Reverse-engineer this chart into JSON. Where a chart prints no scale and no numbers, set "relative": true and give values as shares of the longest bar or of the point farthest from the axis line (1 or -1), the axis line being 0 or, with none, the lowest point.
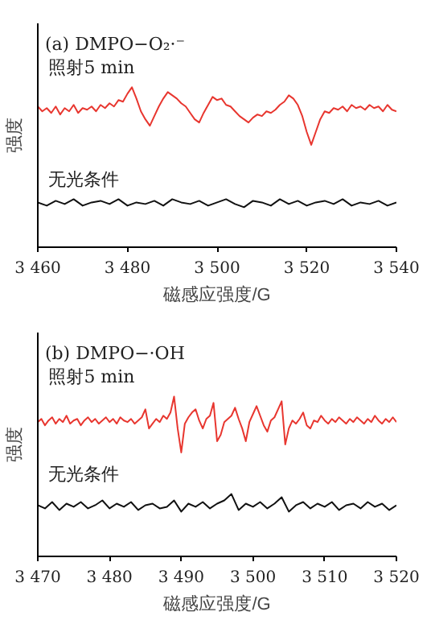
{
  "chart_data": [
    {
      "type": "line",
      "title": "(a) DMPO−O₂·⁻",
      "xlabel": "磁感应强度/G",
      "ylabel": "强度",
      "relative": true,
      "tick_labels": "x",
      "grid": false,
      "marker": "none",
      "line_style": "solid",
      "xlim": [
        3460,
        3540
      ],
      "xticks": [
        {
          "value": 3460,
          "label": "3 460"
        },
        {
          "value": 3480,
          "label": "3 480"
        },
        {
          "value": 3500,
          "label": "3 500"
        },
        {
          "value": 3520,
          "label": "3 520"
        },
        {
          "value": 3540,
          "label": "3 540"
        }
      ],
      "series": [
        {
          "name": "照射5 min",
          "color": "#e8362f",
          "x": [
            3460,
            3461,
            3462,
            3463,
            3464,
            3465,
            3466,
            3467,
            3468,
            3469,
            3470,
            3471,
            3472,
            3473,
            3474,
            3475,
            3476,
            3477,
            3478,
            3479,
            3480,
            3481,
            3482,
            3483,
            3484,
            3485,
            3486,
            3487,
            3488,
            3489,
            3490,
            3491,
            3492,
            3493,
            3494,
            3495,
            3496,
            3497,
            3498,
            3499,
            3500,
            3501,
            3502,
            3503,
            3504,
            3505,
            3506,
            3507,
            3508,
            3509,
            3510,
            3511,
            3512,
            3513,
            3514,
            3515,
            3516,
            3517,
            3518,
            3519,
            3520,
            3521,
            3522,
            3523,
            3524,
            3525,
            3526,
            3527,
            3528,
            3529,
            3530,
            3531,
            3532,
            3533,
            3534,
            3535,
            3536,
            3537,
            3538,
            3539,
            3540
          ],
          "values": [
            0.88,
            0.85,
            0.87,
            0.84,
            0.88,
            0.83,
            0.87,
            0.85,
            0.89,
            0.84,
            0.87,
            0.86,
            0.88,
            0.85,
            0.89,
            0.87,
            0.9,
            0.88,
            0.92,
            0.91,
            0.96,
            1.0,
            0.93,
            0.85,
            0.8,
            0.76,
            0.82,
            0.88,
            0.93,
            0.97,
            0.95,
            0.93,
            0.9,
            0.88,
            0.84,
            0.8,
            0.78,
            0.84,
            0.89,
            0.94,
            0.92,
            0.93,
            0.89,
            0.88,
            0.85,
            0.82,
            0.8,
            0.78,
            0.81,
            0.83,
            0.82,
            0.85,
            0.84,
            0.86,
            0.89,
            0.91,
            0.95,
            0.93,
            0.89,
            0.82,
            0.72,
            0.64,
            0.72,
            0.8,
            0.85,
            0.84,
            0.87,
            0.86,
            0.88,
            0.85,
            0.89,
            0.87,
            0.88,
            0.86,
            0.89,
            0.87,
            0.88,
            0.85,
            0.89,
            0.86,
            0.85
          ]
        },
        {
          "name": "无光条件",
          "color": "#111111",
          "x": [
            3460,
            3462,
            3464,
            3466,
            3468,
            3470,
            3472,
            3474,
            3476,
            3478,
            3480,
            3482,
            3484,
            3486,
            3488,
            3490,
            3492,
            3494,
            3496,
            3498,
            3500,
            3502,
            3504,
            3506,
            3508,
            3510,
            3512,
            3514,
            3516,
            3518,
            3520,
            3522,
            3524,
            3526,
            3528,
            3530,
            3532,
            3534,
            3536,
            3538,
            3540
          ],
          "values": [
            0.28,
            0.26,
            0.29,
            0.27,
            0.3,
            0.26,
            0.28,
            0.29,
            0.27,
            0.3,
            0.26,
            0.28,
            0.27,
            0.29,
            0.26,
            0.3,
            0.28,
            0.27,
            0.29,
            0.26,
            0.28,
            0.3,
            0.27,
            0.25,
            0.29,
            0.28,
            0.26,
            0.3,
            0.27,
            0.29,
            0.26,
            0.28,
            0.29,
            0.27,
            0.3,
            0.26,
            0.28,
            0.27,
            0.29,
            0.26,
            0.28
          ]
        }
      ]
    },
    {
      "type": "line",
      "title": "(b) DMPO−·OH",
      "xlabel": "磁感应强度/G",
      "ylabel": "强度",
      "relative": true,
      "tick_labels": "x",
      "grid": false,
      "marker": "none",
      "line_style": "solid",
      "xlim": [
        3470,
        3520
      ],
      "xticks": [
        {
          "value": 3470,
          "label": "3 470"
        },
        {
          "value": 3480,
          "label": "3 480"
        },
        {
          "value": 3490,
          "label": "3 490"
        },
        {
          "value": 3500,
          "label": "3 500"
        },
        {
          "value": 3510,
          "label": "3 510"
        },
        {
          "value": 3520,
          "label": "3 520"
        }
      ],
      "series": [
        {
          "name": "照射5 min",
          "color": "#e8362f",
          "x": [
            3470,
            3470.5,
            3471,
            3471.5,
            3472,
            3472.5,
            3473,
            3473.5,
            3474,
            3474.5,
            3475,
            3475.5,
            3476,
            3476.5,
            3477,
            3477.5,
            3478,
            3478.5,
            3479,
            3479.5,
            3480,
            3480.5,
            3481,
            3481.5,
            3482,
            3482.5,
            3483,
            3483.5,
            3484,
            3484.5,
            3485,
            3485.5,
            3486,
            3486.5,
            3487,
            3487.5,
            3488,
            3488.5,
            3489,
            3489.5,
            3490,
            3490.5,
            3491,
            3491.5,
            3492,
            3492.5,
            3493,
            3493.5,
            3494,
            3494.5,
            3495,
            3495.5,
            3496,
            3496.5,
            3497,
            3497.5,
            3498,
            3498.5,
            3499,
            3499.5,
            3500,
            3500.5,
            3501,
            3501.5,
            3502,
            3502.5,
            3503,
            3503.5,
            3504,
            3504.5,
            3505,
            3505.5,
            3506,
            3506.5,
            3507,
            3507.5,
            3508,
            3508.5,
            3509,
            3509.5,
            3510,
            3510.5,
            3511,
            3511.5,
            3512,
            3512.5,
            3513,
            3513.5,
            3514,
            3514.5,
            3515,
            3515.5,
            3516,
            3516.5,
            3517,
            3517.5,
            3518,
            3518.5,
            3519,
            3519.5,
            3520
          ],
          "values": [
            0.84,
            0.86,
            0.82,
            0.85,
            0.87,
            0.83,
            0.86,
            0.84,
            0.88,
            0.83,
            0.85,
            0.86,
            0.82,
            0.85,
            0.87,
            0.84,
            0.86,
            0.83,
            0.85,
            0.87,
            0.84,
            0.86,
            0.83,
            0.87,
            0.85,
            0.84,
            0.86,
            0.83,
            0.85,
            0.87,
            0.92,
            0.8,
            0.83,
            0.86,
            0.84,
            0.88,
            0.86,
            0.9,
            1.0,
            0.8,
            0.65,
            0.83,
            0.87,
            0.9,
            0.92,
            0.85,
            0.8,
            0.86,
            0.88,
            0.96,
            0.72,
            0.76,
            0.84,
            0.86,
            0.88,
            0.93,
            0.86,
            0.8,
            0.72,
            0.84,
            0.89,
            0.94,
            0.88,
            0.82,
            0.78,
            0.85,
            0.87,
            0.92,
            0.97,
            0.7,
            0.8,
            0.85,
            0.83,
            0.86,
            0.9,
            0.82,
            0.8,
            0.85,
            0.84,
            0.88,
            0.85,
            0.83,
            0.86,
            0.84,
            0.87,
            0.85,
            0.83,
            0.86,
            0.84,
            0.87,
            0.85,
            0.83,
            0.86,
            0.84,
            0.88,
            0.85,
            0.83,
            0.86,
            0.84,
            0.87,
            0.84
          ]
        },
        {
          "name": "无光条件",
          "color": "#111111",
          "x": [
            3470,
            3471,
            3472,
            3473,
            3474,
            3475,
            3476,
            3477,
            3478,
            3479,
            3480,
            3481,
            3482,
            3483,
            3484,
            3485,
            3486,
            3487,
            3488,
            3489,
            3490,
            3491,
            3492,
            3493,
            3494,
            3495,
            3496,
            3497,
            3498,
            3499,
            3500,
            3501,
            3502,
            3503,
            3504,
            3505,
            3506,
            3507,
            3508,
            3509,
            3510,
            3511,
            3512,
            3513,
            3514,
            3515,
            3516,
            3517,
            3518,
            3519,
            3520
          ],
          "values": [
            0.32,
            0.3,
            0.34,
            0.29,
            0.33,
            0.31,
            0.34,
            0.3,
            0.32,
            0.35,
            0.3,
            0.33,
            0.31,
            0.34,
            0.29,
            0.32,
            0.33,
            0.3,
            0.31,
            0.35,
            0.28,
            0.33,
            0.31,
            0.34,
            0.3,
            0.33,
            0.35,
            0.39,
            0.29,
            0.33,
            0.31,
            0.34,
            0.3,
            0.33,
            0.37,
            0.28,
            0.32,
            0.34,
            0.3,
            0.33,
            0.31,
            0.34,
            0.29,
            0.32,
            0.33,
            0.3,
            0.34,
            0.31,
            0.33,
            0.29,
            0.32
          ]
        }
      ]
    }
  ]
}
